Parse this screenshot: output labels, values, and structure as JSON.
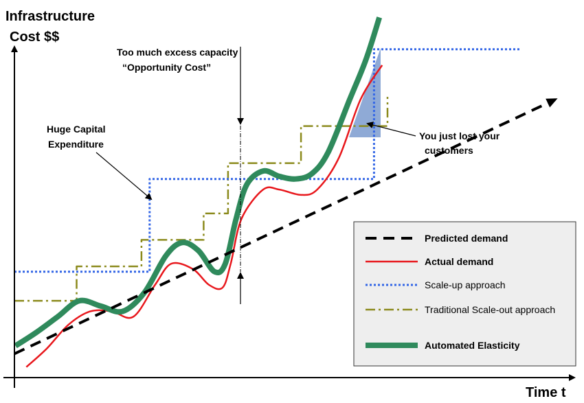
{
  "chart_data": {
    "type": "line",
    "ylabel_line1": "Infrastructure",
    "ylabel_line2": "Cost $$",
    "xlabel": "Time t",
    "colors": {
      "predicted": "#000000",
      "actual": "#e8171c",
      "scaleup": "#3366e6",
      "scaleout": "#8b8a1c",
      "elastic": "#2f8a5c",
      "lost_fill": "#8faad6"
    },
    "series": [
      {
        "key": "predicted",
        "name": "Predicted demand",
        "style": "dashed",
        "x": [
          0,
          100
        ],
        "y": [
          4,
          100
        ]
      },
      {
        "key": "actual",
        "name": "Actual demand",
        "style": "solid",
        "x": [
          2.2,
          6,
          10,
          14,
          18,
          22,
          26,
          29,
          33,
          36,
          38.5,
          40,
          42,
          46,
          49,
          53,
          56,
          60,
          64,
          68
        ],
        "y": [
          -1,
          6,
          15,
          20,
          20,
          18,
          30,
          38,
          36,
          30,
          29,
          38,
          55,
          66,
          66,
          64,
          66,
          78,
          100,
          113
        ]
      },
      {
        "key": "elastic",
        "name": "Automated Elasticity",
        "style": "thick",
        "x": [
          0.2,
          4,
          8,
          12,
          16,
          20,
          24,
          28,
          31,
          34,
          37,
          39,
          41,
          43,
          46,
          49,
          52,
          55,
          58,
          62,
          65,
          67.5
        ],
        "y": [
          7,
          12,
          18,
          24,
          22,
          20,
          27,
          41,
          46,
          43,
          35,
          38,
          55,
          68,
          73,
          71,
          70,
          72,
          80,
          100,
          115,
          131
        ]
      },
      {
        "key": "scaleup",
        "name": "Scale-up approach",
        "style": "dotted",
        "x": [
          0,
          25,
          25,
          66.5,
          66.5,
          93.5
        ],
        "y": [
          35,
          35,
          70,
          70,
          119,
          119
        ]
      },
      {
        "key": "scaleout",
        "name": "Traditional Scale-out approach",
        "style": "dashdot",
        "x": [
          0,
          11.5,
          11.5,
          23.5,
          23.5,
          35,
          35,
          39.5,
          39.5,
          53,
          53,
          69,
          69
        ],
        "y": [
          24,
          24,
          37,
          37,
          47,
          47,
          57,
          57,
          76,
          76,
          90,
          90,
          101
        ]
      }
    ],
    "annotations": [
      {
        "key": "capex",
        "lines": [
          "Huge Capital",
          "Expenditure"
        ]
      },
      {
        "key": "excess",
        "lines": [
          "Too much excess capacity",
          "“Opportunity Cost”"
        ]
      },
      {
        "key": "lost",
        "lines": [
          "You just lost your",
          "customers"
        ]
      }
    ],
    "legend": {
      "position": "bottom-right"
    },
    "xlim": [
      0,
      100
    ],
    "ylim": [
      -5,
      135
    ]
  }
}
